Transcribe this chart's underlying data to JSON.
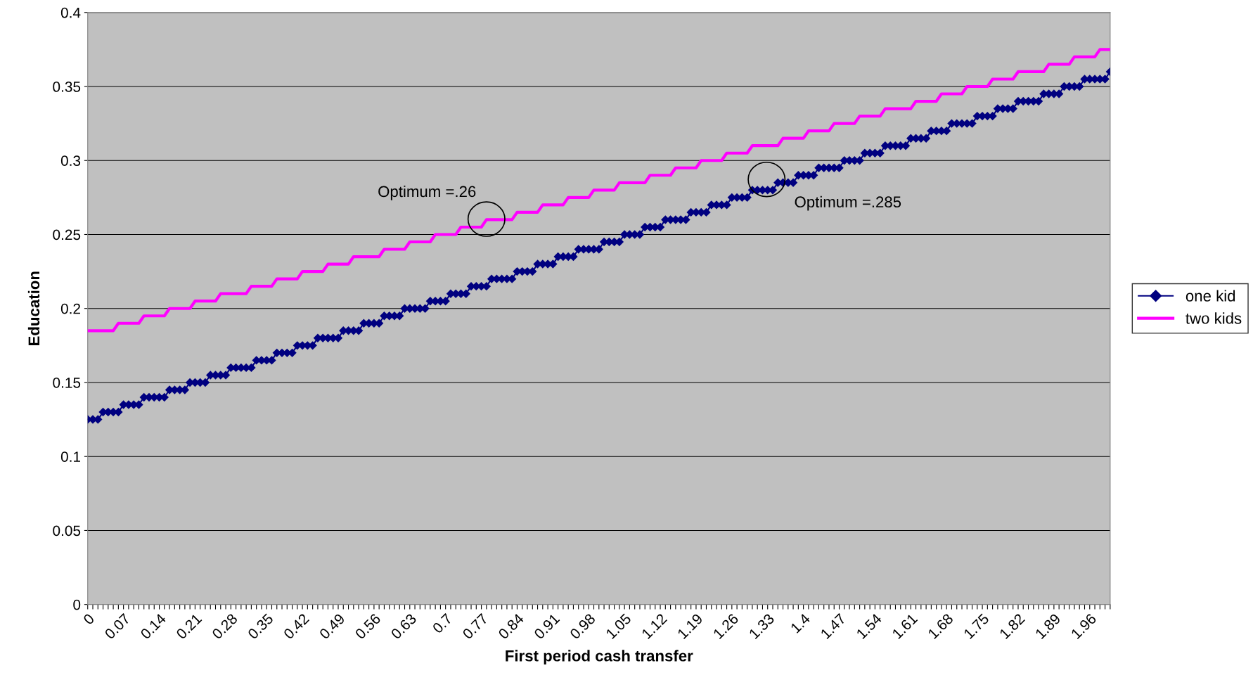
{
  "chart_data": {
    "type": "line",
    "xlabel": "First period cash transfer",
    "ylabel": "Education",
    "categories": [
      "0",
      null,
      null,
      null,
      null,
      null,
      null,
      "0.07",
      null,
      null,
      null,
      null,
      null,
      null,
      "0.14",
      null,
      null,
      null,
      null,
      null,
      null,
      "0.21",
      null,
      null,
      null,
      null,
      null,
      null,
      "0.28",
      null,
      null,
      null,
      null,
      null,
      null,
      "0.35",
      null,
      null,
      null,
      null,
      null,
      null,
      "0.42",
      null,
      null,
      null,
      null,
      null,
      null,
      "0.49",
      null,
      null,
      null,
      null,
      null,
      null,
      "0.56",
      null,
      null,
      null,
      null,
      null,
      null,
      "0.63",
      null,
      null,
      null,
      null,
      null,
      null,
      "0.7",
      null,
      null,
      null,
      null,
      null,
      null,
      "0.77",
      null,
      null,
      null,
      null,
      null,
      null,
      "0.84",
      null,
      null,
      null,
      null,
      null,
      null,
      "0.91",
      null,
      null,
      null,
      null,
      null,
      null,
      "0.98",
      null,
      null,
      null,
      null,
      null,
      null,
      "1.05",
      null,
      null,
      null,
      null,
      null,
      null,
      "1.12",
      null,
      null,
      null,
      null,
      null,
      null,
      "1.19",
      null,
      null,
      null,
      null,
      null,
      null,
      "1.26",
      null,
      null,
      null,
      null,
      null,
      null,
      "1.33",
      null,
      null,
      null,
      null,
      null,
      null,
      "1.4",
      null,
      null,
      null,
      null,
      null,
      null,
      "1.47",
      null,
      null,
      null,
      null,
      null,
      null,
      "1.54",
      null,
      null,
      null,
      null,
      null,
      null,
      "1.61",
      null,
      null,
      null,
      null,
      null,
      null,
      "1.68",
      null,
      null,
      null,
      null,
      null,
      null,
      "1.75",
      null,
      null,
      null,
      null,
      null,
      null,
      "1.82",
      null,
      null,
      null,
      null,
      null,
      null,
      "1.89",
      null,
      null,
      null,
      null,
      null,
      null,
      "1.96",
      null,
      null,
      null,
      null
    ],
    "series": [
      {
        "name": "one kid",
        "color": "#000080",
        "marker": "diamond",
        "values": [
          0.125,
          0.125,
          0.125,
          0.13,
          0.13,
          0.13,
          0.13,
          0.135,
          0.135,
          0.135,
          0.135,
          0.14,
          0.14,
          0.14,
          0.14,
          0.14,
          0.145,
          0.145,
          0.145,
          0.145,
          0.15,
          0.15,
          0.15,
          0.15,
          0.155,
          0.155,
          0.155,
          0.155,
          0.16,
          0.16,
          0.16,
          0.16,
          0.16,
          0.165,
          0.165,
          0.165,
          0.165,
          0.17,
          0.17,
          0.17,
          0.17,
          0.175,
          0.175,
          0.175,
          0.175,
          0.18,
          0.18,
          0.18,
          0.18,
          0.18,
          0.185,
          0.185,
          0.185,
          0.185,
          0.19,
          0.19,
          0.19,
          0.19,
          0.195,
          0.195,
          0.195,
          0.195,
          0.2,
          0.2,
          0.2,
          0.2,
          0.2,
          0.205,
          0.205,
          0.205,
          0.205,
          0.21,
          0.21,
          0.21,
          0.21,
          0.215,
          0.215,
          0.215,
          0.215,
          0.22,
          0.22,
          0.22,
          0.22,
          0.22,
          0.225,
          0.225,
          0.225,
          0.225,
          0.23,
          0.23,
          0.23,
          0.23,
          0.235,
          0.235,
          0.235,
          0.235,
          0.24,
          0.24,
          0.24,
          0.24,
          0.24,
          0.245,
          0.245,
          0.245,
          0.245,
          0.25,
          0.25,
          0.25,
          0.25,
          0.255,
          0.255,
          0.255,
          0.255,
          0.26,
          0.26,
          0.26,
          0.26,
          0.26,
          0.265,
          0.265,
          0.265,
          0.265,
          0.27,
          0.27,
          0.27,
          0.27,
          0.275,
          0.275,
          0.275,
          0.275,
          0.28,
          0.28,
          0.28,
          0.28,
          0.28,
          0.285,
          0.285,
          0.285,
          0.285,
          0.29,
          0.29,
          0.29,
          0.29,
          0.295,
          0.295,
          0.295,
          0.295,
          0.295,
          0.3,
          0.3,
          0.3,
          0.3,
          0.305,
          0.305,
          0.305,
          0.305,
          0.31,
          0.31,
          0.31,
          0.31,
          0.31,
          0.315,
          0.315,
          0.315,
          0.315,
          0.32,
          0.32,
          0.32,
          0.32,
          0.325,
          0.325,
          0.325,
          0.325,
          0.325,
          0.33,
          0.33,
          0.33,
          0.33,
          0.335,
          0.335,
          0.335,
          0.335,
          0.34,
          0.34,
          0.34,
          0.34,
          0.34,
          0.345,
          0.345,
          0.345,
          0.345,
          0.35,
          0.35,
          0.35,
          0.35,
          0.355,
          0.355,
          0.355,
          0.355,
          0.355,
          0.36
        ]
      },
      {
        "name": "two kids",
        "color": "#ff00ff",
        "marker": "none",
        "values": [
          0.185,
          0.185,
          0.185,
          0.185,
          0.185,
          0.185,
          0.19,
          0.19,
          0.19,
          0.19,
          0.19,
          0.195,
          0.195,
          0.195,
          0.195,
          0.195,
          0.2,
          0.2,
          0.2,
          0.2,
          0.2,
          0.205,
          0.205,
          0.205,
          0.205,
          0.205,
          0.21,
          0.21,
          0.21,
          0.21,
          0.21,
          0.21,
          0.215,
          0.215,
          0.215,
          0.215,
          0.215,
          0.22,
          0.22,
          0.22,
          0.22,
          0.22,
          0.225,
          0.225,
          0.225,
          0.225,
          0.225,
          0.23,
          0.23,
          0.23,
          0.23,
          0.23,
          0.235,
          0.235,
          0.235,
          0.235,
          0.235,
          0.235,
          0.24,
          0.24,
          0.24,
          0.24,
          0.24,
          0.245,
          0.245,
          0.245,
          0.245,
          0.245,
          0.25,
          0.25,
          0.25,
          0.25,
          0.25,
          0.255,
          0.255,
          0.255,
          0.255,
          0.255,
          0.26,
          0.26,
          0.26,
          0.26,
          0.26,
          0.26,
          0.265,
          0.265,
          0.265,
          0.265,
          0.265,
          0.27,
          0.27,
          0.27,
          0.27,
          0.27,
          0.275,
          0.275,
          0.275,
          0.275,
          0.275,
          0.28,
          0.28,
          0.28,
          0.28,
          0.28,
          0.285,
          0.285,
          0.285,
          0.285,
          0.285,
          0.285,
          0.29,
          0.29,
          0.29,
          0.29,
          0.29,
          0.295,
          0.295,
          0.295,
          0.295,
          0.295,
          0.3,
          0.3,
          0.3,
          0.3,
          0.3,
          0.305,
          0.305,
          0.305,
          0.305,
          0.305,
          0.31,
          0.31,
          0.31,
          0.31,
          0.31,
          0.31,
          0.315,
          0.315,
          0.315,
          0.315,
          0.315,
          0.32,
          0.32,
          0.32,
          0.32,
          0.32,
          0.325,
          0.325,
          0.325,
          0.325,
          0.325,
          0.33,
          0.33,
          0.33,
          0.33,
          0.33,
          0.335,
          0.335,
          0.335,
          0.335,
          0.335,
          0.335,
          0.34,
          0.34,
          0.34,
          0.34,
          0.34,
          0.345,
          0.345,
          0.345,
          0.345,
          0.345,
          0.35,
          0.35,
          0.35,
          0.35,
          0.35,
          0.355,
          0.355,
          0.355,
          0.355,
          0.355,
          0.36,
          0.36,
          0.36,
          0.36,
          0.36,
          0.36,
          0.365,
          0.365,
          0.365,
          0.365,
          0.365,
          0.37,
          0.37,
          0.37,
          0.37,
          0.37,
          0.375,
          0.375,
          0.375
        ]
      }
    ],
    "ylim": [
      0,
      0.4
    ],
    "yticks": [
      0,
      0.05,
      0.1,
      0.15,
      0.2,
      0.25,
      0.3,
      0.35,
      0.4
    ],
    "grid": "y",
    "legend": "right",
    "annotations": [
      "Optimum =.26",
      "Optimum =.285"
    ]
  }
}
